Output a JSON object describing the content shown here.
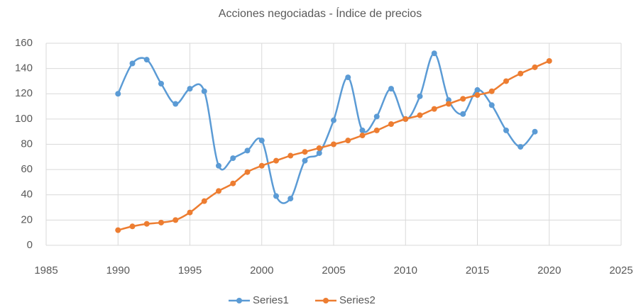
{
  "chart_data": {
    "type": "scatter",
    "title": "Acciones negociadas - Índice de precios",
    "series": [
      {
        "name": "Series1",
        "color": "#5b9bd5",
        "x": [
          1990,
          1991,
          1992,
          1993,
          1994,
          1995,
          1996,
          1997,
          1998,
          1999,
          2000,
          2001,
          2002,
          2003,
          2004,
          2005,
          2006,
          2007,
          2008,
          2009,
          2010,
          2011,
          2012,
          2013,
          2014,
          2015,
          2016,
          2017,
          2018,
          2019
        ],
        "values": [
          120,
          144,
          147,
          128,
          112,
          124,
          122,
          63,
          69,
          75,
          83,
          39,
          37,
          67,
          73,
          99,
          133,
          91,
          102,
          124,
          100,
          118,
          152,
          115,
          104,
          123,
          111,
          91,
          78,
          90
        ]
      },
      {
        "name": "Series2",
        "color": "#ed7d31",
        "x": [
          1990,
          1991,
          1992,
          1993,
          1994,
          1995,
          1996,
          1997,
          1998,
          1999,
          2000,
          2001,
          2002,
          2003,
          2004,
          2005,
          2006,
          2007,
          2008,
          2009,
          2010,
          2011,
          2012,
          2013,
          2014,
          2015,
          2016,
          2017,
          2018,
          2019,
          2020
        ],
        "values": [
          12,
          15,
          17,
          18,
          20,
          26,
          35,
          43,
          49,
          58,
          63,
          67,
          71,
          74,
          77,
          80,
          83,
          87,
          91,
          96,
          100,
          103,
          108,
          112,
          116,
          119,
          122,
          130,
          136,
          141,
          146
        ]
      }
    ],
    "xlim": [
      1985,
      2025
    ],
    "xticks": [
      1985,
      1990,
      1995,
      2000,
      2005,
      2010,
      2015,
      2020,
      2025
    ],
    "ylim": [
      0,
      160
    ],
    "yticks": [
      0,
      20,
      40,
      60,
      80,
      100,
      120,
      140,
      160
    ],
    "grid": true,
    "smooth": true,
    "legend": "bottom"
  }
}
